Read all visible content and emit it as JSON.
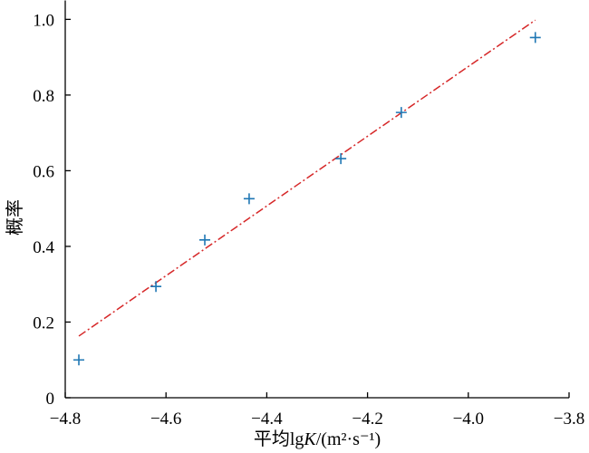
{
  "chart_data": {
    "type": "scatter",
    "xlabel": "平均lgK/(m²·s⁻¹)",
    "ylabel": "概率",
    "xlim": [
      -4.8,
      -3.8
    ],
    "ylim": [
      0,
      1.05
    ],
    "xticks": [
      -4.8,
      -4.6,
      -4.4,
      -4.2,
      -4.0,
      -3.8
    ],
    "xtick_labels": [
      "−4.8",
      "−4.6",
      "−4.4",
      "−4.2",
      "−4.0",
      "−3.8"
    ],
    "yticks": [
      0,
      0.2,
      0.4,
      0.6,
      0.8,
      1.0
    ],
    "ytick_labels": [
      "0",
      "0.2",
      "0.4",
      "0.6",
      "0.8",
      "1.0"
    ],
    "grid": false,
    "legend": "none",
    "series": [
      {
        "type": "scatter",
        "marker": "+",
        "color": "#1f77b4",
        "x": [
          -4.773,
          -4.62,
          -4.523,
          -4.435,
          -4.253,
          -4.133,
          -3.867
        ],
        "y": [
          0.1,
          0.294,
          0.417,
          0.526,
          0.632,
          0.754,
          0.952
        ]
      },
      {
        "type": "line",
        "linestyle": "dash-dot",
        "color": "#d62728",
        "x": [
          -4.773,
          -3.867
        ],
        "y": [
          0.163,
          0.998
        ]
      }
    ]
  }
}
